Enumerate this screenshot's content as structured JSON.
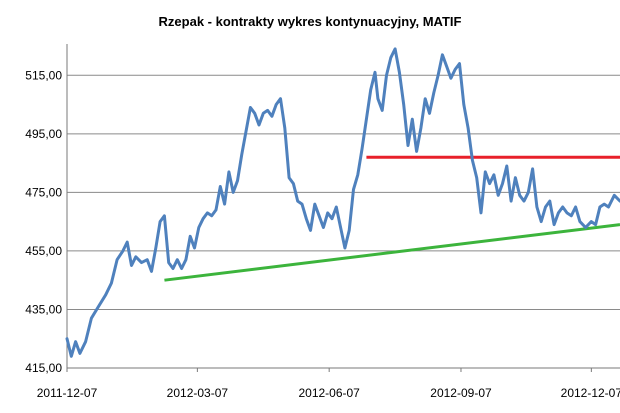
{
  "chart_data": {
    "type": "line",
    "title": "Rzepak - kontrakty wykres kontynuacyjny, MATIF",
    "xlabel": "",
    "ylabel": "",
    "ylim": [
      415,
      525
    ],
    "grid": true,
    "x_ticks": [
      {
        "date": "2011-12-07",
        "label": "2011-12-07"
      },
      {
        "date": "2012-03-07",
        "label": "2012-03-07"
      },
      {
        "date": "2012-06-07",
        "label": "2012-06-07"
      },
      {
        "date": "2012-09-07",
        "label": "2012-09-07"
      },
      {
        "date": "2012-12-07",
        "label": "2012-12-07"
      }
    ],
    "x_range": [
      "2011-12-07",
      "2012-12-27"
    ],
    "y_ticks": [
      {
        "value": 415,
        "label": "415,00"
      },
      {
        "value": 435,
        "label": "435,00"
      },
      {
        "value": 455,
        "label": "455,00"
      },
      {
        "value": 475,
        "label": "475,00"
      },
      {
        "value": 495,
        "label": "495,00"
      },
      {
        "value": 515,
        "label": "515,00"
      }
    ],
    "series": [
      {
        "color": "#4f81bd",
        "points": [
          [
            "2011-12-07",
            425
          ],
          [
            "2011-12-10",
            419
          ],
          [
            "2011-12-13",
            424
          ],
          [
            "2011-12-16",
            420
          ],
          [
            "2011-12-20",
            424
          ],
          [
            "2011-12-24",
            432
          ],
          [
            "2011-12-29",
            436
          ],
          [
            "2012-01-03",
            440
          ],
          [
            "2012-01-07",
            444
          ],
          [
            "2012-01-11",
            452
          ],
          [
            "2012-01-15",
            455
          ],
          [
            "2012-01-18",
            458
          ],
          [
            "2012-01-21",
            450
          ],
          [
            "2012-01-24",
            453
          ],
          [
            "2012-01-28",
            451
          ],
          [
            "2012-02-01",
            452
          ],
          [
            "2012-02-04",
            448
          ],
          [
            "2012-02-07",
            456
          ],
          [
            "2012-02-10",
            465
          ],
          [
            "2012-02-13",
            467
          ],
          [
            "2012-02-16",
            451
          ],
          [
            "2012-02-19",
            449
          ],
          [
            "2012-02-22",
            452
          ],
          [
            "2012-02-25",
            449
          ],
          [
            "2012-02-28",
            452
          ],
          [
            "2012-03-02",
            460
          ],
          [
            "2012-03-05",
            456
          ],
          [
            "2012-03-08",
            463
          ],
          [
            "2012-03-11",
            466
          ],
          [
            "2012-03-14",
            468
          ],
          [
            "2012-03-17",
            467
          ],
          [
            "2012-03-20",
            469
          ],
          [
            "2012-03-23",
            477
          ],
          [
            "2012-03-26",
            471
          ],
          [
            "2012-03-29",
            482
          ],
          [
            "2012-04-01",
            475
          ],
          [
            "2012-04-04",
            479
          ],
          [
            "2012-04-07",
            488
          ],
          [
            "2012-04-10",
            496
          ],
          [
            "2012-04-13",
            504
          ],
          [
            "2012-04-16",
            502
          ],
          [
            "2012-04-19",
            498
          ],
          [
            "2012-04-22",
            502
          ],
          [
            "2012-04-25",
            503
          ],
          [
            "2012-04-28",
            501
          ],
          [
            "2012-05-01",
            505
          ],
          [
            "2012-05-04",
            507
          ],
          [
            "2012-05-07",
            497
          ],
          [
            "2012-05-10",
            480
          ],
          [
            "2012-05-13",
            478
          ],
          [
            "2012-05-16",
            472
          ],
          [
            "2012-05-19",
            471
          ],
          [
            "2012-05-22",
            466
          ],
          [
            "2012-05-25",
            462
          ],
          [
            "2012-05-28",
            471
          ],
          [
            "2012-05-31",
            467
          ],
          [
            "2012-06-03",
            463
          ],
          [
            "2012-06-06",
            468
          ],
          [
            "2012-06-09",
            466
          ],
          [
            "2012-06-12",
            470
          ],
          [
            "2012-06-15",
            463
          ],
          [
            "2012-06-18",
            456
          ],
          [
            "2012-06-21",
            462
          ],
          [
            "2012-06-24",
            476
          ],
          [
            "2012-06-27",
            481
          ],
          [
            "2012-06-30",
            490
          ],
          [
            "2012-07-03",
            500
          ],
          [
            "2012-07-06",
            510
          ],
          [
            "2012-07-09",
            516
          ],
          [
            "2012-07-11",
            507
          ],
          [
            "2012-07-14",
            503
          ],
          [
            "2012-07-17",
            515
          ],
          [
            "2012-07-20",
            521
          ],
          [
            "2012-07-23",
            524
          ],
          [
            "2012-07-26",
            516
          ],
          [
            "2012-07-29",
            505
          ],
          [
            "2012-08-01",
            491
          ],
          [
            "2012-08-04",
            500
          ],
          [
            "2012-08-07",
            489
          ],
          [
            "2012-08-10",
            497
          ],
          [
            "2012-08-13",
            507
          ],
          [
            "2012-08-16",
            502
          ],
          [
            "2012-08-19",
            509
          ],
          [
            "2012-08-22",
            515
          ],
          [
            "2012-08-25",
            522
          ],
          [
            "2012-08-28",
            518
          ],
          [
            "2012-08-31",
            514
          ],
          [
            "2012-09-03",
            517
          ],
          [
            "2012-09-06",
            519
          ],
          [
            "2012-09-09",
            505
          ],
          [
            "2012-09-12",
            497
          ],
          [
            "2012-09-15",
            486
          ],
          [
            "2012-09-18",
            480
          ],
          [
            "2012-09-21",
            468
          ],
          [
            "2012-09-24",
            482
          ],
          [
            "2012-09-27",
            478
          ],
          [
            "2012-09-30",
            481
          ],
          [
            "2012-10-03",
            474
          ],
          [
            "2012-10-06",
            478
          ],
          [
            "2012-10-09",
            484
          ],
          [
            "2012-10-12",
            472
          ],
          [
            "2012-10-15",
            480
          ],
          [
            "2012-10-18",
            474
          ],
          [
            "2012-10-21",
            472
          ],
          [
            "2012-10-24",
            475
          ],
          [
            "2012-10-27",
            483
          ],
          [
            "2012-10-30",
            470
          ],
          [
            "2012-11-02",
            465
          ],
          [
            "2012-11-05",
            470
          ],
          [
            "2012-11-08",
            472
          ],
          [
            "2012-11-11",
            464
          ],
          [
            "2012-11-14",
            468
          ],
          [
            "2012-11-17",
            470
          ],
          [
            "2012-11-20",
            468
          ],
          [
            "2012-11-23",
            467
          ],
          [
            "2012-11-26",
            470
          ],
          [
            "2012-11-29",
            465
          ],
          [
            "2012-12-03",
            463
          ],
          [
            "2012-12-07",
            465
          ],
          [
            "2012-12-10",
            464
          ],
          [
            "2012-12-13",
            470
          ],
          [
            "2012-12-16",
            471
          ],
          [
            "2012-12-19",
            470
          ],
          [
            "2012-12-23",
            474
          ],
          [
            "2012-12-27",
            472
          ]
        ]
      }
    ],
    "annotations": [
      {
        "kind": "trendline",
        "color": "#3cb43c",
        "from": [
          "2012-02-13",
          445
        ],
        "to": [
          "2012-12-27",
          464
        ]
      },
      {
        "kind": "resistance",
        "color": "#e8202a",
        "from": [
          "2012-07-03",
          487
        ],
        "to": [
          "2012-12-27",
          487
        ]
      }
    ]
  }
}
